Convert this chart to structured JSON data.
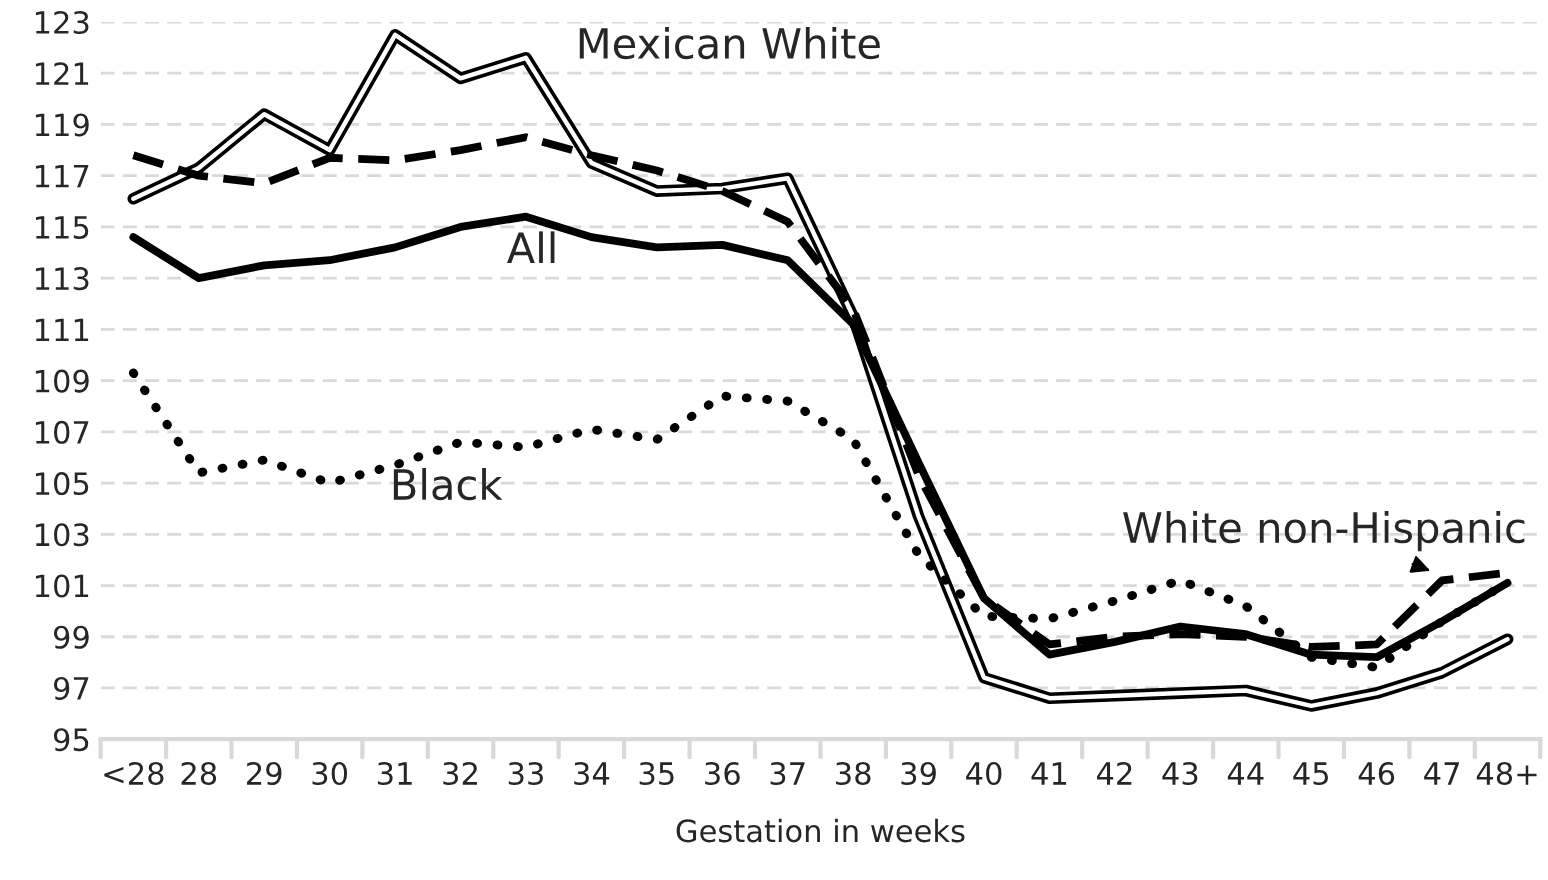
{
  "chart_data": {
    "type": "line",
    "xlabel": "Gestation in weeks",
    "categories": [
      "<28",
      "28",
      "29",
      "30",
      "31",
      "32",
      "33",
      "34",
      "35",
      "36",
      "37",
      "38",
      "39",
      "40",
      "41",
      "42",
      "43",
      "44",
      "45",
      "46",
      "47",
      "48+"
    ],
    "series": [
      {
        "name": "Mexican White",
        "color": "#000000",
        "line_style": "solid",
        "values": [
          116.1,
          117.3,
          119.4,
          118.0,
          122.5,
          120.8,
          121.6,
          117.5,
          116.4,
          116.5,
          116.9,
          111.5,
          103.7,
          97.4,
          96.6,
          96.7,
          96.8,
          96.9,
          96.3,
          96.8,
          97.6,
          98.9
        ]
      },
      {
        "name": "White non-Hispanic",
        "color": "#000000",
        "line_style": "dashed",
        "values": [
          117.8,
          117.0,
          116.7,
          117.7,
          117.6,
          118.0,
          118.5,
          117.8,
          117.2,
          116.4,
          115.2,
          111.8,
          105.3,
          100.5,
          98.7,
          99.0,
          99.1,
          99.0,
          98.6,
          98.7,
          101.2,
          101.5
        ]
      },
      {
        "name": "All",
        "color": "#000000",
        "line_style": "solid",
        "values": [
          114.6,
          113.0,
          113.5,
          113.7,
          114.2,
          115.0,
          115.4,
          114.6,
          114.2,
          114.3,
          113.7,
          111.2,
          105.8,
          100.5,
          98.3,
          98.8,
          99.4,
          99.1,
          98.3,
          98.2,
          99.6,
          101.1
        ]
      },
      {
        "name": "Black",
        "color": "#000000",
        "line_style": "dotted",
        "values": [
          109.3,
          105.4,
          105.9,
          105.0,
          105.7,
          106.6,
          106.4,
          107.1,
          106.7,
          108.4,
          108.2,
          106.7,
          102.2,
          99.8,
          99.7,
          100.4,
          101.2,
          100.2,
          98.2,
          97.8,
          99.6,
          101.1
        ]
      }
    ],
    "ylim": [
      95,
      123
    ],
    "yticks": [
      95,
      97,
      99,
      101,
      103,
      105,
      107,
      109,
      111,
      113,
      115,
      117,
      119,
      121,
      123
    ],
    "grid": "y",
    "legend": false
  }
}
